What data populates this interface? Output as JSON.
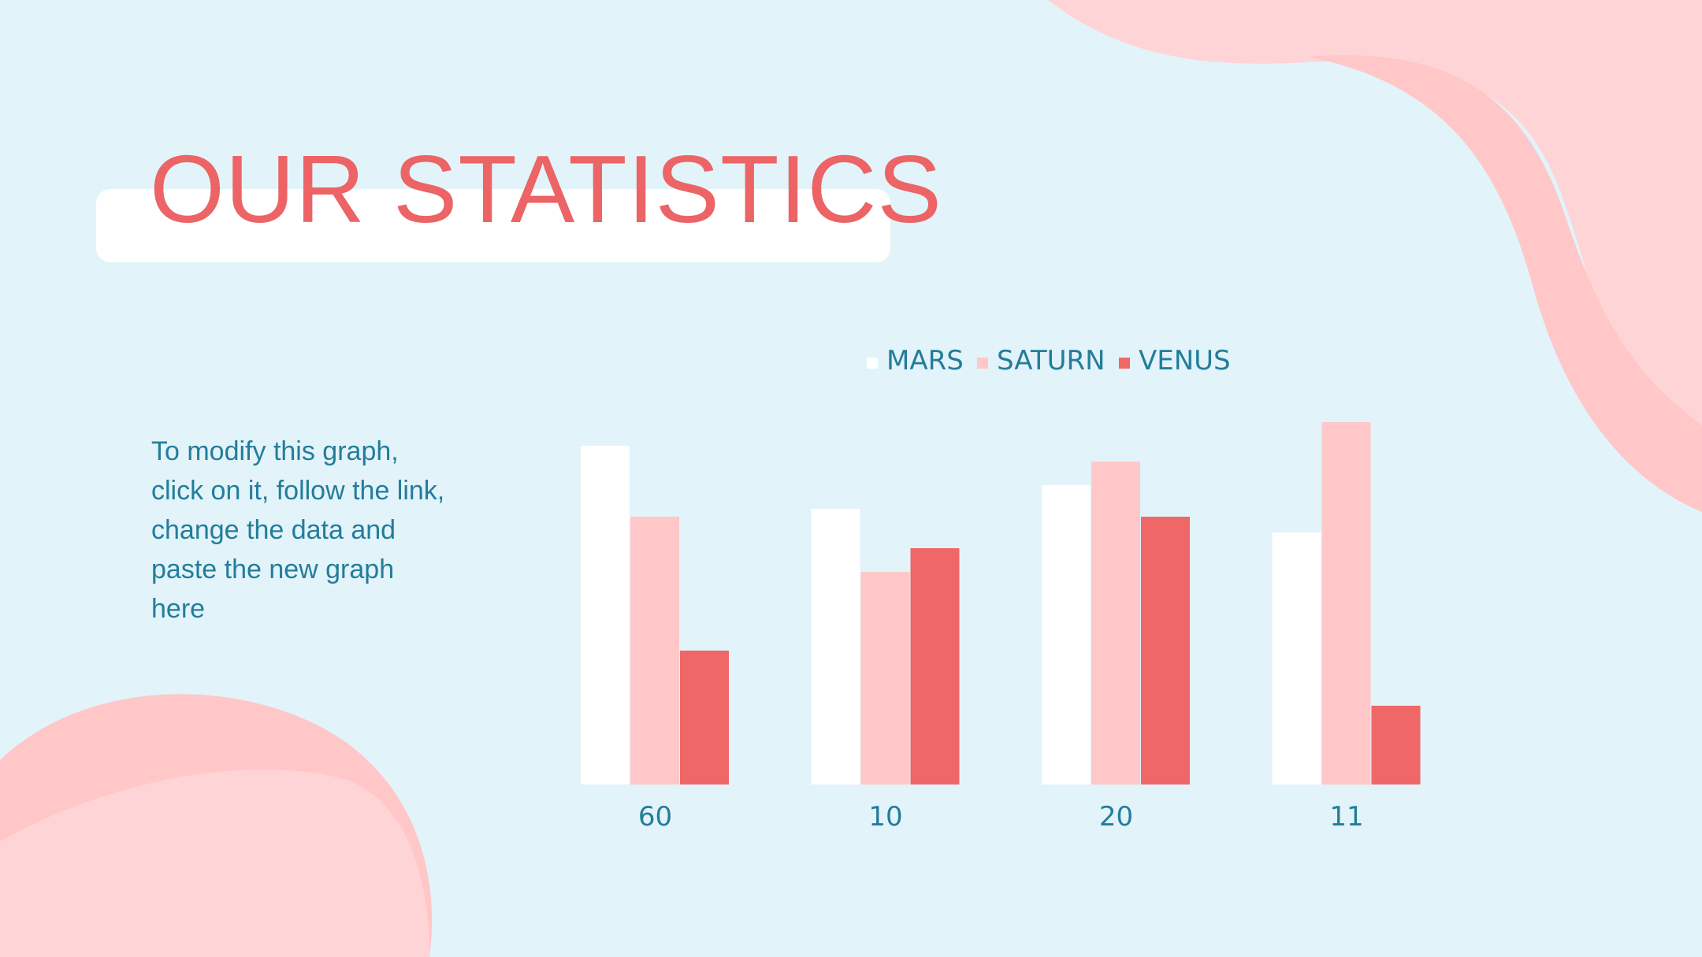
{
  "slide": {
    "title": "OUR STATISTICS",
    "note": "To modify this graph,\nclick on it, follow the link,\nchange the data and\npaste the new graph\nhere"
  },
  "colors": {
    "background": "#e2f3fa",
    "accent": "#ec6465",
    "text": "#237d9a",
    "blob_light": "#ffd4d6",
    "blob_mid": "#ffc7c8"
  },
  "chart_data": {
    "type": "bar",
    "categories": [
      "60",
      "10",
      "20",
      "11"
    ],
    "series": [
      {
        "name": "MARS",
        "color": "#ffffff",
        "values": [
          4.3,
          3.5,
          3.8,
          3.2
        ]
      },
      {
        "name": "SATURN",
        "color": "#ffc7c8",
        "values": [
          3.4,
          2.7,
          4.1,
          4.6
        ]
      },
      {
        "name": "VENUS",
        "color": "#ef6767",
        "values": [
          1.7,
          3.0,
          3.4,
          1.0
        ]
      }
    ],
    "ylim": [
      0,
      5
    ],
    "grid": false,
    "legend": "top-center"
  }
}
